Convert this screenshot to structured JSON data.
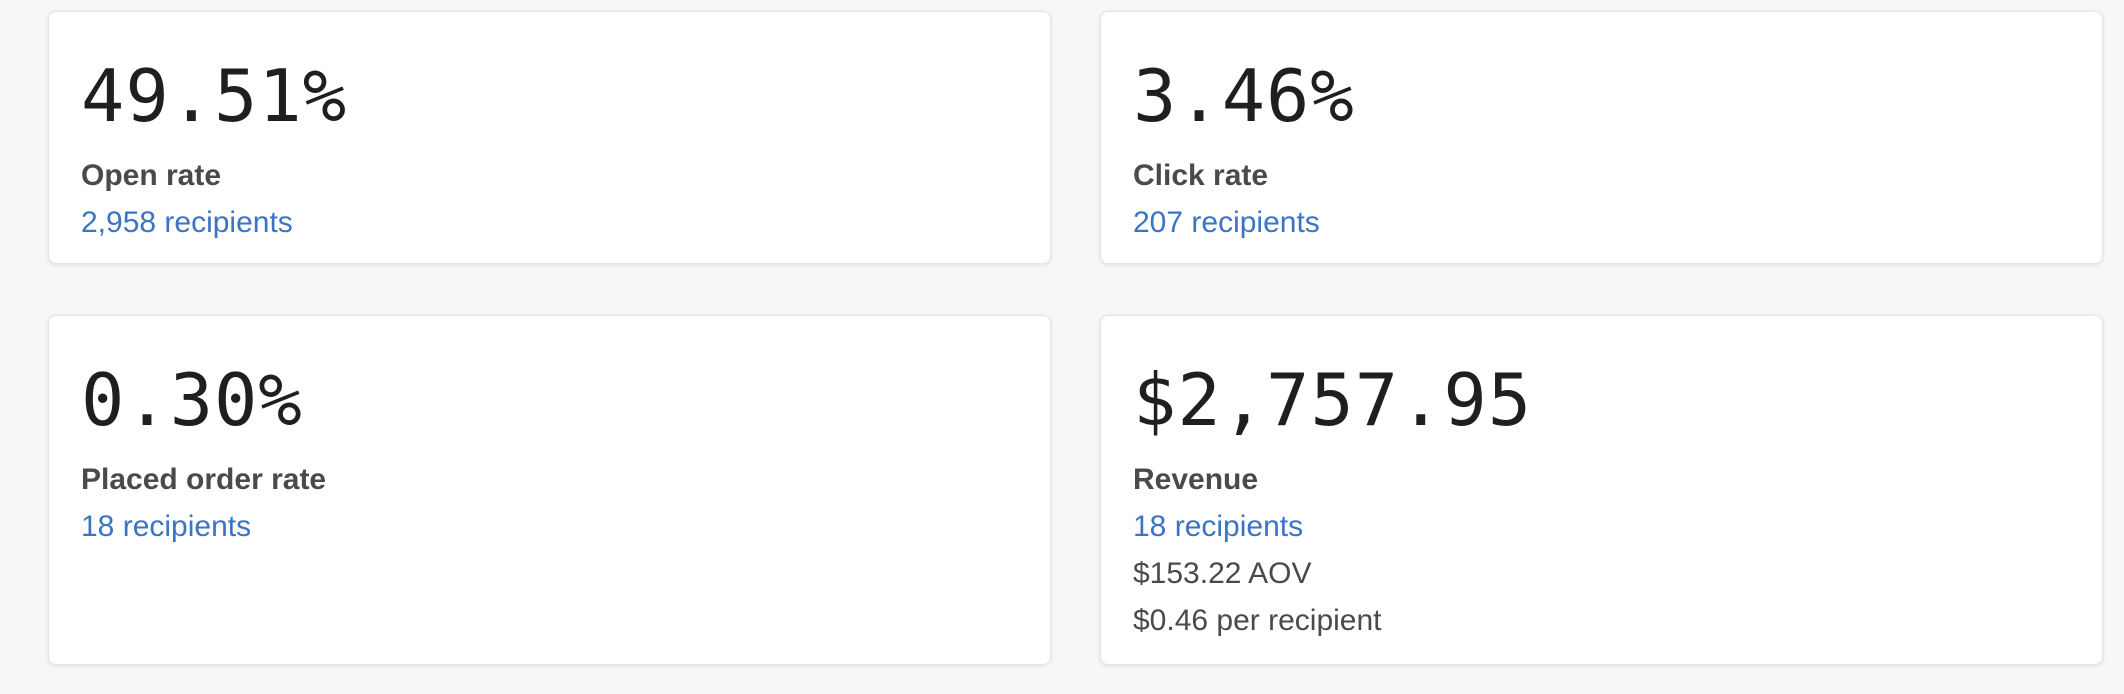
{
  "cards": {
    "open_rate": {
      "value": "49.51%",
      "label": "Open rate",
      "recipients": "2,958 recipients"
    },
    "click_rate": {
      "value": "3.46%",
      "label": "Click rate",
      "recipients": "207 recipients"
    },
    "placed_order_rate": {
      "value": "0.30%",
      "label": "Placed order rate",
      "recipients": "18 recipients"
    },
    "revenue": {
      "value": "$2,757.95",
      "label": "Revenue",
      "recipients": "18 recipients",
      "aov": "$153.22 AOV",
      "per_recipient": "$0.46 per recipient"
    }
  },
  "colors": {
    "background": "#f6f7f9",
    "card": "#ffffff",
    "link": "#3a74c2",
    "metric_text": "#1f1f1f",
    "label_text": "#4a4a4a"
  }
}
